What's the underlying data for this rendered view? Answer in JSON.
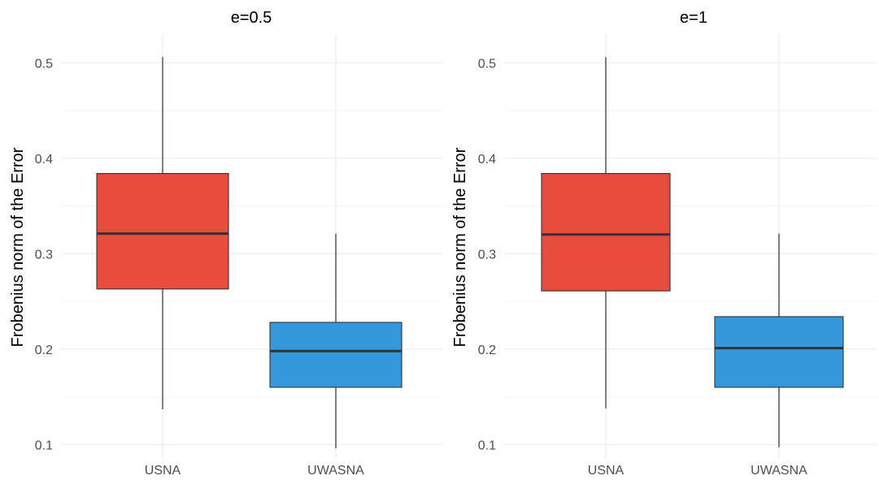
{
  "chart_data": [
    {
      "type": "box",
      "title": "e=0.5",
      "ylabel": "Frobenius norm of the Error",
      "xlabel": "",
      "categories": [
        "USNA",
        "UWASNA"
      ],
      "ylim": [
        0.085,
        0.53
      ],
      "yticks": [
        0.1,
        0.2,
        0.3,
        0.4,
        0.5
      ],
      "grid": true,
      "legend": "none",
      "colors": [
        "#e74c3c",
        "#3498db"
      ],
      "boxes": [
        {
          "name": "USNA",
          "min": 0.137,
          "q1": 0.263,
          "median": 0.321,
          "q3": 0.384,
          "max": 0.506
        },
        {
          "name": "UWASNA",
          "min": 0.096,
          "q1": 0.16,
          "median": 0.198,
          "q3": 0.228,
          "max": 0.321
        }
      ]
    },
    {
      "type": "box",
      "title": "e=1",
      "ylabel": "Frobenius norm of the Error",
      "xlabel": "",
      "categories": [
        "USNA",
        "UWASNA"
      ],
      "ylim": [
        0.085,
        0.53
      ],
      "yticks": [
        0.1,
        0.2,
        0.3,
        0.4,
        0.5
      ],
      "grid": true,
      "legend": "none",
      "colors": [
        "#e74c3c",
        "#3498db"
      ],
      "boxes": [
        {
          "name": "USNA",
          "min": 0.138,
          "q1": 0.261,
          "median": 0.32,
          "q3": 0.384,
          "max": 0.506
        },
        {
          "name": "UWASNA",
          "min": 0.097,
          "q1": 0.16,
          "median": 0.201,
          "q3": 0.234,
          "max": 0.321
        }
      ]
    }
  ]
}
